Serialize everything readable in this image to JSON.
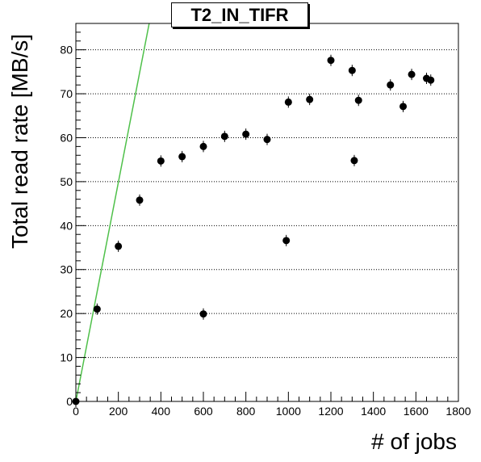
{
  "chart_data": {
    "type": "scatter",
    "title": "T2_IN_TIFR",
    "xlabel": "# of jobs",
    "ylabel": "Total read rate [MB/s]",
    "xlim": [
      0,
      1800
    ],
    "ylim": [
      0,
      86
    ],
    "x_ticks": [
      0,
      200,
      400,
      600,
      800,
      1000,
      1200,
      1400,
      1600,
      1800
    ],
    "y_ticks": [
      0,
      10,
      20,
      30,
      40,
      50,
      60,
      70,
      80
    ],
    "grid": "horizontal-dotted",
    "series": [
      {
        "type": "scatter",
        "color": "#000000",
        "points": [
          {
            "x": 0,
            "y": 0
          },
          {
            "x": 100,
            "y": 21
          },
          {
            "x": 200,
            "y": 35.3
          },
          {
            "x": 300,
            "y": 45.8
          },
          {
            "x": 400,
            "y": 54.7
          },
          {
            "x": 500,
            "y": 55.7
          },
          {
            "x": 600,
            "y": 58
          },
          {
            "x": 600,
            "y": 19.9
          },
          {
            "x": 700,
            "y": 60.3
          },
          {
            "x": 800,
            "y": 60.8
          },
          {
            "x": 900,
            "y": 59.6
          },
          {
            "x": 990,
            "y": 36.6
          },
          {
            "x": 1000,
            "y": 68.1
          },
          {
            "x": 1100,
            "y": 68.7
          },
          {
            "x": 1200,
            "y": 77.6
          },
          {
            "x": 1300,
            "y": 75.3
          },
          {
            "x": 1310,
            "y": 54.8
          },
          {
            "x": 1330,
            "y": 68.5
          },
          {
            "x": 1480,
            "y": 72
          },
          {
            "x": 1540,
            "y": 67.1
          },
          {
            "x": 1580,
            "y": 74.4
          },
          {
            "x": 1650,
            "y": 73.5
          },
          {
            "x": 1670,
            "y": 73.1
          }
        ]
      },
      {
        "type": "line",
        "color": "#4fc04a",
        "points": [
          {
            "x": 0,
            "y": 0
          },
          {
            "x": 345,
            "y": 86
          }
        ]
      }
    ]
  }
}
